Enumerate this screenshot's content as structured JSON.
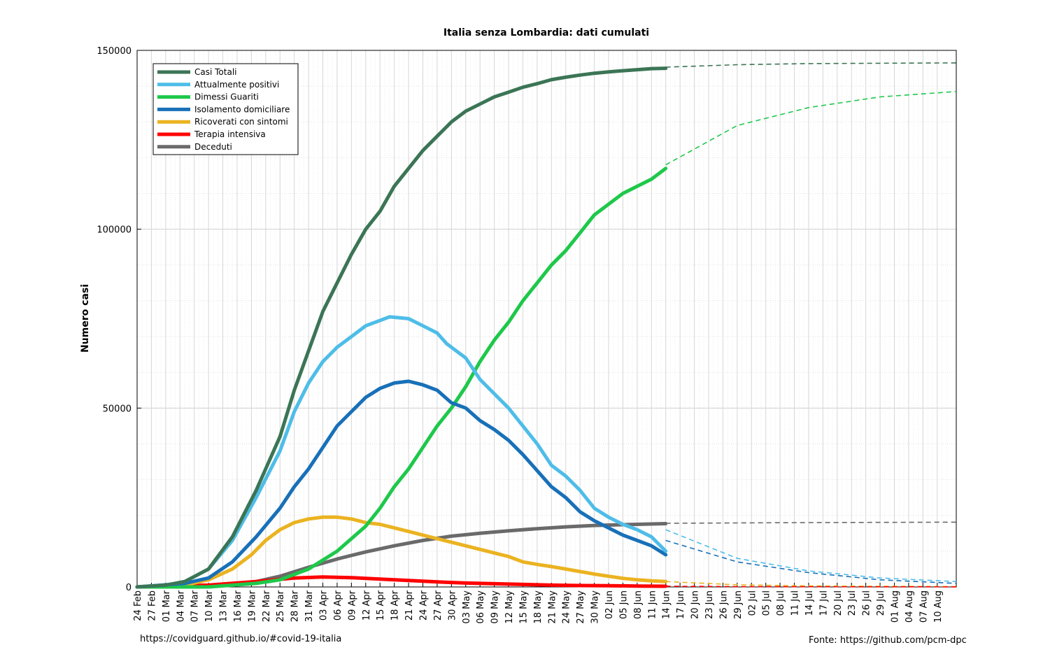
{
  "footer": {
    "left": "https://covidguard.github.io/#covid-19-italia",
    "right": "Fonte: https://github.com/pcm-dpc"
  },
  "chart_data": {
    "type": "line",
    "title": "Italia senza Lombardia: dati cumulati",
    "xlabel": "",
    "ylabel": "Numero casi",
    "ylim": [
      0,
      150000
    ],
    "xlim": [
      "2020-02-24",
      "2020-08-14"
    ],
    "yticks": [
      0,
      50000,
      100000,
      150000
    ],
    "ytick_labels": [
      "0",
      "50000",
      "100000",
      "150000"
    ],
    "xtick_labels": [
      "24 Feb",
      "27 Feb",
      "01 Mar",
      "04 Mar",
      "07 Mar",
      "10 Mar",
      "13 Mar",
      "16 Mar",
      "19 Mar",
      "22 Mar",
      "25 Mar",
      "28 Mar",
      "31 Mar",
      "03 Apr",
      "06 Apr",
      "09 Apr",
      "12 Apr",
      "15 Apr",
      "18 Apr",
      "21 Apr",
      "24 Apr",
      "27 Apr",
      "30 Apr",
      "03 May",
      "06 May",
      "09 May",
      "12 May",
      "15 May",
      "18 May",
      "21 May",
      "24 May",
      "27 May",
      "30 May",
      "02 Jun",
      "05 Jun",
      "08 Jun",
      "11 Jun",
      "14 Jun",
      "17 Jun",
      "20 Jun",
      "23 Jun",
      "26 Jun",
      "29 Jun",
      "02 Jul",
      "05 Jul",
      "08 Jul",
      "11 Jul",
      "14 Jul",
      "17 Jul",
      "20 Jul",
      "23 Jul",
      "26 Jul",
      "29 Jul",
      "01 Aug",
      "04 Aug",
      "07 Aug",
      "10 Aug"
    ],
    "grid": true,
    "legend_position": "top-left",
    "series": [
      {
        "name": "Casi Totali",
        "color": "#3b7555",
        "x": [
          "2020-02-24",
          "2020-03-01",
          "2020-03-05",
          "2020-03-10",
          "2020-03-15",
          "2020-03-20",
          "2020-03-25",
          "2020-03-28",
          "2020-03-31",
          "2020-04-03",
          "2020-04-06",
          "2020-04-09",
          "2020-04-12",
          "2020-04-15",
          "2020-04-18",
          "2020-04-21",
          "2020-04-24",
          "2020-04-27",
          "2020-04-30",
          "2020-05-03",
          "2020-05-06",
          "2020-05-09",
          "2020-05-12",
          "2020-05-15",
          "2020-05-18",
          "2020-05-21",
          "2020-05-24",
          "2020-05-27",
          "2020-05-30",
          "2020-06-02",
          "2020-06-05",
          "2020-06-08",
          "2020-06-11",
          "2020-06-14"
        ],
        "y": [
          0,
          500,
          1500,
          5000,
          14000,
          27000,
          42000,
          55000,
          66000,
          77000,
          85000,
          93000,
          100000,
          105000,
          112000,
          117000,
          122000,
          126000,
          130000,
          133000,
          135000,
          137000,
          138300,
          139700,
          140700,
          141800,
          142500,
          143100,
          143600,
          144000,
          144300,
          144600,
          144900,
          145000
        ],
        "forecast": {
          "x": [
            "2020-06-14",
            "2020-06-29",
            "2020-07-14",
            "2020-07-29",
            "2020-08-14"
          ],
          "y": [
            145300,
            146000,
            146300,
            146400,
            146500
          ]
        }
      },
      {
        "name": "Attualmente positivi",
        "color": "#4ebde8",
        "x": [
          "2020-02-24",
          "2020-03-01",
          "2020-03-05",
          "2020-03-10",
          "2020-03-15",
          "2020-03-20",
          "2020-03-25",
          "2020-03-28",
          "2020-03-31",
          "2020-04-03",
          "2020-04-06",
          "2020-04-09",
          "2020-04-12",
          "2020-04-15",
          "2020-04-17",
          "2020-04-21",
          "2020-04-24",
          "2020-04-27",
          "2020-04-29",
          "2020-05-01",
          "2020-05-03",
          "2020-05-06",
          "2020-05-09",
          "2020-05-12",
          "2020-05-15",
          "2020-05-18",
          "2020-05-21",
          "2020-05-24",
          "2020-05-27",
          "2020-05-30",
          "2020-06-02",
          "2020-06-05",
          "2020-06-08",
          "2020-06-11",
          "2020-06-14"
        ],
        "y": [
          0,
          500,
          1500,
          5000,
          13000,
          25000,
          38000,
          49000,
          57000,
          63000,
          67000,
          70000,
          73000,
          74500,
          75500,
          75000,
          73000,
          71000,
          68000,
          66000,
          64000,
          58000,
          54000,
          50000,
          45000,
          40000,
          34000,
          31000,
          27000,
          22000,
          19500,
          17500,
          16000,
          14000,
          10000
        ],
        "forecast": {
          "x": [
            "2020-06-14",
            "2020-06-29",
            "2020-07-14",
            "2020-07-29",
            "2020-08-14"
          ],
          "y": [
            16000,
            8000,
            4500,
            2500,
            1500
          ]
        }
      },
      {
        "name": "Dimessi Guariti",
        "color": "#1ec84a",
        "x": [
          "2020-02-24",
          "2020-03-10",
          "2020-03-20",
          "2020-03-25",
          "2020-03-31",
          "2020-04-06",
          "2020-04-12",
          "2020-04-15",
          "2020-04-18",
          "2020-04-21",
          "2020-04-24",
          "2020-04-27",
          "2020-04-30",
          "2020-05-03",
          "2020-05-06",
          "2020-05-09",
          "2020-05-12",
          "2020-05-15",
          "2020-05-18",
          "2020-05-21",
          "2020-05-24",
          "2020-05-27",
          "2020-05-30",
          "2020-06-02",
          "2020-06-05",
          "2020-06-08",
          "2020-06-11",
          "2020-06-14"
        ],
        "y": [
          0,
          0,
          1000,
          2000,
          5000,
          10000,
          17000,
          22000,
          28000,
          33000,
          39000,
          45000,
          50000,
          56000,
          63000,
          69000,
          74000,
          80000,
          85000,
          90000,
          94000,
          99000,
          104000,
          107000,
          110000,
          112000,
          114000,
          117000
        ],
        "forecast": {
          "x": [
            "2020-06-14",
            "2020-06-29",
            "2020-07-14",
            "2020-07-29",
            "2020-08-14"
          ],
          "y": [
            118000,
            129000,
            134000,
            137000,
            138500
          ]
        }
      },
      {
        "name": "Isolamento domiciliare",
        "color": "#1870b8",
        "x": [
          "2020-02-24",
          "2020-03-05",
          "2020-03-10",
          "2020-03-15",
          "2020-03-20",
          "2020-03-25",
          "2020-03-28",
          "2020-03-31",
          "2020-04-03",
          "2020-04-06",
          "2020-04-09",
          "2020-04-12",
          "2020-04-15",
          "2020-04-18",
          "2020-04-21",
          "2020-04-24",
          "2020-04-27",
          "2020-04-30",
          "2020-05-03",
          "2020-05-06",
          "2020-05-09",
          "2020-05-12",
          "2020-05-15",
          "2020-05-18",
          "2020-05-21",
          "2020-05-24",
          "2020-05-27",
          "2020-05-30",
          "2020-06-02",
          "2020-06-05",
          "2020-06-08",
          "2020-06-11",
          "2020-06-14"
        ],
        "y": [
          0,
          1000,
          2500,
          7000,
          14000,
          22000,
          28000,
          33000,
          39000,
          45000,
          49000,
          53000,
          55500,
          57000,
          57500,
          56500,
          55000,
          51500,
          50000,
          46500,
          44000,
          41000,
          37000,
          32500,
          28000,
          25000,
          21000,
          18500,
          16500,
          14500,
          13000,
          11500,
          9000
        ],
        "forecast": {
          "x": [
            "2020-06-14",
            "2020-06-29",
            "2020-07-14",
            "2020-07-29",
            "2020-08-14"
          ],
          "y": [
            13000,
            7000,
            4000,
            2000,
            1000
          ]
        }
      },
      {
        "name": "Ricoverati con sintomi",
        "color": "#ebb321",
        "x": [
          "2020-02-24",
          "2020-03-05",
          "2020-03-10",
          "2020-03-15",
          "2020-03-19",
          "2020-03-22",
          "2020-03-25",
          "2020-03-28",
          "2020-03-31",
          "2020-04-03",
          "2020-04-06",
          "2020-04-09",
          "2020-04-12",
          "2020-04-15",
          "2020-04-18",
          "2020-04-21",
          "2020-04-24",
          "2020-04-27",
          "2020-04-30",
          "2020-05-03",
          "2020-05-06",
          "2020-05-09",
          "2020-05-12",
          "2020-05-15",
          "2020-05-18",
          "2020-05-21",
          "2020-05-24",
          "2020-05-27",
          "2020-05-30",
          "2020-06-02",
          "2020-06-05",
          "2020-06-08",
          "2020-06-11",
          "2020-06-14"
        ],
        "y": [
          0,
          500,
          2000,
          5000,
          9000,
          13000,
          16000,
          18000,
          19000,
          19500,
          19500,
          19000,
          18000,
          17500,
          16500,
          15500,
          14500,
          13500,
          12500,
          11500,
          10500,
          9500,
          8500,
          7000,
          6300,
          5700,
          5000,
          4300,
          3600,
          3000,
          2400,
          2000,
          1700,
          1500
        ],
        "forecast": {
          "x": [
            "2020-06-14",
            "2020-06-29",
            "2020-07-14",
            "2020-07-29",
            "2020-08-14"
          ],
          "y": [
            1500,
            600,
            300,
            200,
            100
          ]
        }
      },
      {
        "name": "Terapia intensiva",
        "color": "#ff0000",
        "x": [
          "2020-02-24",
          "2020-03-10",
          "2020-03-20",
          "2020-03-28",
          "2020-04-03",
          "2020-04-09",
          "2020-04-15",
          "2020-04-21",
          "2020-04-27",
          "2020-05-03",
          "2020-05-09",
          "2020-05-15",
          "2020-05-21",
          "2020-05-27",
          "2020-06-02",
          "2020-06-08",
          "2020-06-14"
        ],
        "y": [
          0,
          500,
          1500,
          2500,
          2800,
          2600,
          2200,
          1800,
          1400,
          1100,
          900,
          700,
          500,
          400,
          350,
          250,
          200
        ],
        "forecast": {
          "x": [
            "2020-06-14",
            "2020-06-29",
            "2020-07-14",
            "2020-07-29",
            "2020-08-14"
          ],
          "y": [
            200,
            100,
            50,
            30,
            20
          ]
        }
      },
      {
        "name": "Deceduti",
        "color": "#6a6a6a",
        "x": [
          "2020-02-24",
          "2020-03-10",
          "2020-03-15",
          "2020-03-20",
          "2020-03-25",
          "2020-03-31",
          "2020-04-06",
          "2020-04-12",
          "2020-04-18",
          "2020-04-24",
          "2020-04-30",
          "2020-05-06",
          "2020-05-12",
          "2020-05-18",
          "2020-05-24",
          "2020-05-30",
          "2020-06-05",
          "2020-06-11",
          "2020-06-14"
        ],
        "y": [
          0,
          200,
          600,
          1500,
          3000,
          5500,
          7800,
          9800,
          11500,
          13000,
          14200,
          15000,
          15700,
          16300,
          16800,
          17200,
          17400,
          17600,
          17700
        ],
        "forecast": {
          "x": [
            "2020-06-14",
            "2020-06-29",
            "2020-07-14",
            "2020-07-29",
            "2020-08-14"
          ],
          "y": [
            17800,
            17900,
            18000,
            18050,
            18100
          ]
        }
      }
    ]
  }
}
